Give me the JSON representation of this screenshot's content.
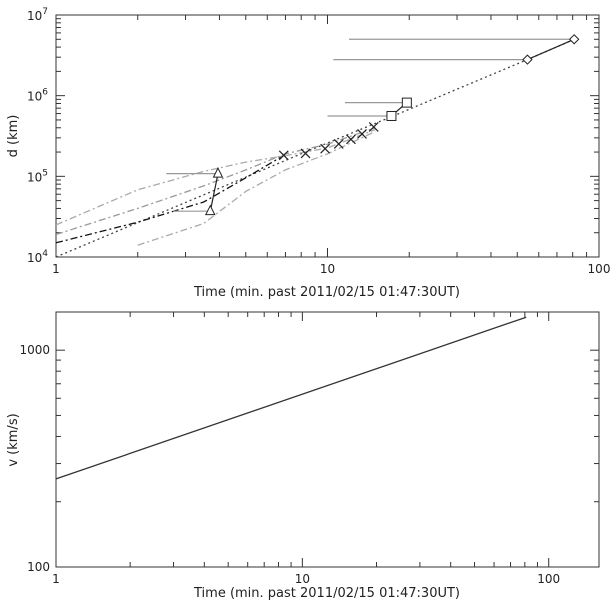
{
  "chart_data": [
    {
      "type": "scatter",
      "title": "",
      "xlabel": "Time (min. past 2011/02/15 01:47:30UT)",
      "ylabel": "d (km)",
      "xscale": "log",
      "yscale": "log",
      "xlim": [
        1,
        100
      ],
      "ylim": [
        10000,
        10000000
      ],
      "x_ticks": [
        {
          "value": 1,
          "label": "1"
        },
        {
          "value": 10,
          "label": "10"
        },
        {
          "value": 100,
          "label": "100"
        }
      ],
      "y_ticks": [
        {
          "value": 10000,
          "base": "10",
          "exp": "4"
        },
        {
          "value": 100000,
          "base": "10",
          "exp": "5"
        },
        {
          "value": 1000000,
          "base": "10",
          "exp": "6"
        },
        {
          "value": 10000000,
          "base": "10",
          "exp": "7"
        }
      ],
      "grid": false,
      "series": [
        {
          "marker": "triangle",
          "connected": true,
          "points": [
            {
              "x": 3.7,
              "y": 37000,
              "xerr_low": 1.0
            },
            {
              "x": 3.95,
              "y": 108000,
              "xerr_low": 1.4
            }
          ]
        },
        {
          "marker": "x",
          "connected": false,
          "points": [
            {
              "x": 6.9,
              "y": 182000
            },
            {
              "x": 8.3,
              "y": 192000
            },
            {
              "x": 9.8,
              "y": 220000
            },
            {
              "x": 11.0,
              "y": 252000
            },
            {
              "x": 12.2,
              "y": 288000
            },
            {
              "x": 13.4,
              "y": 335000
            },
            {
              "x": 14.8,
              "y": 410000
            }
          ]
        },
        {
          "marker": "square",
          "connected": true,
          "points": [
            {
              "x": 17.2,
              "y": 560000,
              "xerr_low": 7.2
            },
            {
              "x": 19.6,
              "y": 820000,
              "xerr_low": 8.0
            }
          ]
        },
        {
          "marker": "diamond",
          "connected": true,
          "points": [
            {
              "x": 54.5,
              "y": 2800000,
              "xerr_low": 44.0
            },
            {
              "x": 81.0,
              "y": 5000000,
              "xerr_low": 69.0
            }
          ]
        }
      ],
      "fits": [
        {
          "style": "dotted",
          "color": "#444444",
          "points": [
            [
              1,
              10000
            ],
            [
              8,
              190000
            ],
            [
              17,
              540000
            ],
            [
              54.5,
              2800000
            ],
            [
              81,
              5000000
            ]
          ]
        },
        {
          "style": "dash-dot",
          "color": "#111111",
          "points": [
            [
              1,
              15000
            ],
            [
              2,
              27000
            ],
            [
              3.5,
              48000
            ],
            [
              5,
              96000
            ],
            [
              6.9,
              182000
            ]
          ]
        },
        {
          "style": "dash-dot",
          "color": "#999999",
          "points": [
            [
              1,
              19000
            ],
            [
              2,
              40000
            ],
            [
              3.5,
              76000
            ],
            [
              5,
              120000
            ],
            [
              7,
              190000
            ],
            [
              10,
              250000
            ],
            [
              15,
              400000
            ]
          ]
        },
        {
          "style": "dash-dot",
          "color": "#aaaaaa",
          "points": [
            [
              1,
              25000
            ],
            [
              2,
              68000
            ],
            [
              3.5,
              115000
            ],
            [
              5,
              150000
            ],
            [
              7,
              180000
            ],
            [
              10,
              225000
            ],
            [
              15,
              380000
            ]
          ]
        },
        {
          "style": "dash-dot",
          "color": "#aaaaaa",
          "points": [
            [
              2,
              14000
            ],
            [
              3.5,
              26000
            ],
            [
              5,
              65000
            ],
            [
              7,
              120000
            ],
            [
              10,
              190000
            ],
            [
              15,
              360000
            ]
          ]
        }
      ]
    },
    {
      "type": "line",
      "title": "",
      "xlabel": "Time (min. past 2011/02/15 01:47:30UT)",
      "ylabel": "v (km/s)",
      "xscale": "log",
      "yscale": "log",
      "xlim": [
        1,
        160
      ],
      "ylim": [
        100,
        1500
      ],
      "x_ticks": [
        {
          "value": 1,
          "label": "1"
        },
        {
          "value": 10,
          "label": "10"
        },
        {
          "value": 100,
          "label": "100"
        }
      ],
      "y_ticks": [
        {
          "value": 100,
          "label": "100"
        },
        {
          "value": 1000,
          "label": "1000"
        }
      ],
      "grid": false,
      "series": [
        {
          "x": [
            1,
            81
          ],
          "y": [
            255,
            1420
          ]
        }
      ]
    }
  ]
}
